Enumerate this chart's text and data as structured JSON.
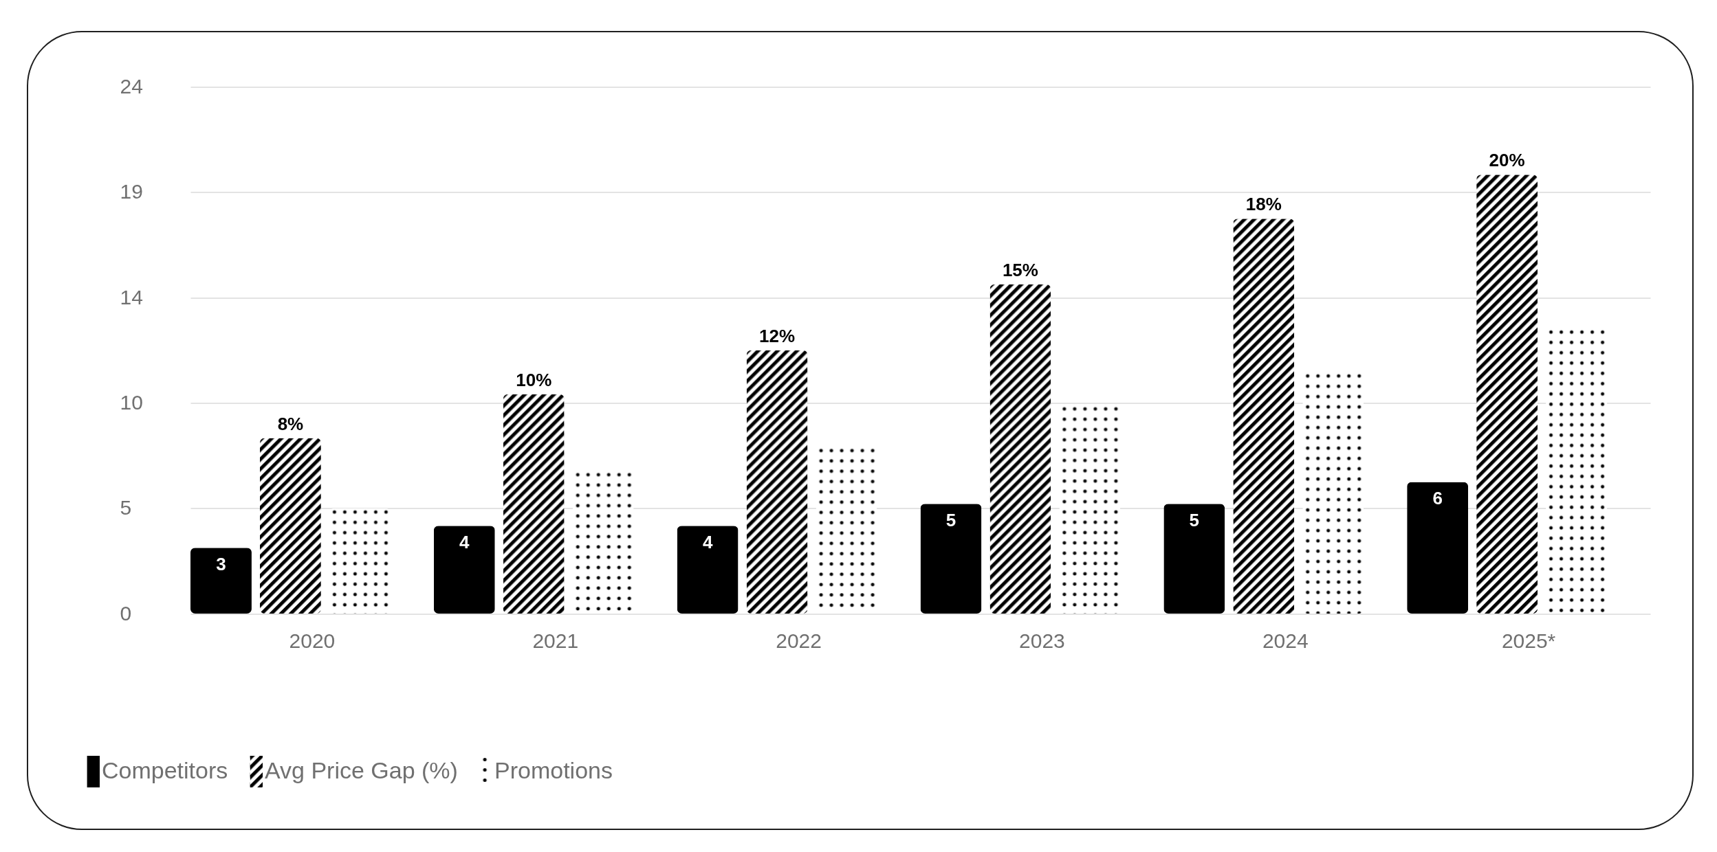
{
  "chart_data": {
    "type": "bar",
    "categories": [
      "2020",
      "2021",
      "2022",
      "2023",
      "2024",
      "2025*"
    ],
    "series": [
      {
        "name": "Competitors",
        "color": "#000000",
        "values": [
          3,
          4,
          4,
          5,
          5,
          6
        ],
        "value_labels": [
          "3",
          "4",
          "4",
          "5",
          "5",
          "6"
        ]
      },
      {
        "name": "Avg Price Gap (%)",
        "color": "#000000",
        "values": [
          8,
          10,
          12,
          15,
          18,
          20
        ],
        "value_labels": [
          "8%",
          "10%",
          "12%",
          "15%",
          "18%",
          "20%"
        ]
      },
      {
        "name": "Promotions",
        "color": "#000000",
        "values": [
          4.8,
          6.5,
          7.6,
          9.5,
          11,
          13
        ]
      }
    ],
    "ylim": [
      0,
      24
    ],
    "yticks": [
      0,
      {
        "value": 4.8,
        "label": "5"
      },
      {
        "value": 9.6,
        "label": "10"
      },
      {
        "value": 14.4,
        "label": "14"
      },
      {
        "value": 19.2,
        "label": "19"
      },
      24
    ],
    "grid": "y",
    "legend": "bottom left"
  }
}
